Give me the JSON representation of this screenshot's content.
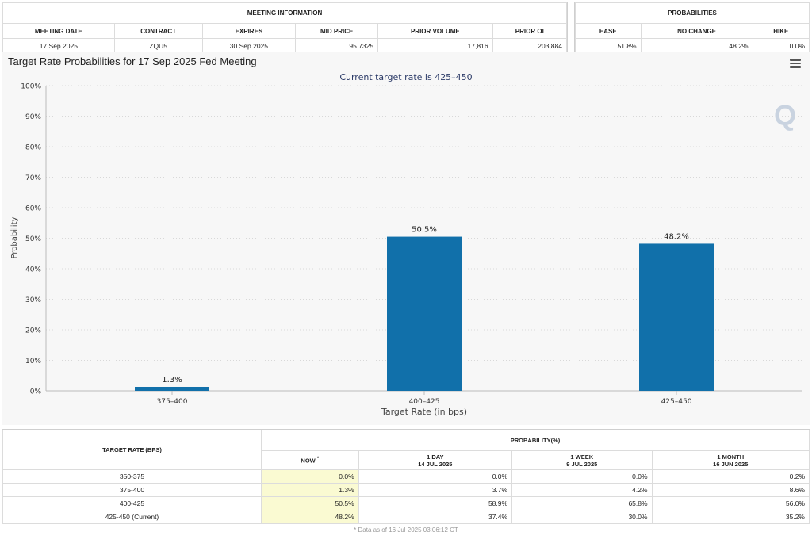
{
  "meeting_info": {
    "title": "MEETING INFORMATION",
    "headers": [
      "MEETING DATE",
      "CONTRACT",
      "EXPIRES",
      "MID PRICE",
      "PRIOR VOLUME",
      "PRIOR OI"
    ],
    "values": [
      "17 Sep 2025",
      "ZQU5",
      "30 Sep 2025",
      "95.7325",
      "17,816",
      "203,884"
    ]
  },
  "probabilities": {
    "title": "PROBABILITIES",
    "headers": [
      "EASE",
      "NO CHANGE",
      "HIKE"
    ],
    "values": [
      "51.8%",
      "48.2%",
      "0.0%"
    ]
  },
  "chart": {
    "title": "Target Rate Probabilities for 17 Sep 2025 Fed Meeting",
    "menu_icon": "hamburger-menu-icon",
    "watermark": "Q"
  },
  "chart_data": {
    "type": "bar",
    "title": "Target Rate Probabilities for 17 Sep 2025 Fed Meeting",
    "subtitle": "Current target rate is 425–450",
    "categories": [
      "375–400",
      "400–425",
      "425–450"
    ],
    "values": [
      1.3,
      50.5,
      48.2
    ],
    "data_labels": [
      "1.3%",
      "50.5%",
      "48.2%"
    ],
    "xlabel": "Target Rate (in bps)",
    "ylabel": "Probability",
    "ylim": [
      0,
      100
    ],
    "yticks": [
      0,
      10,
      20,
      30,
      40,
      50,
      60,
      70,
      80,
      90,
      100
    ],
    "ytick_suffix": "%",
    "grid": true,
    "bar_color": "#1170aa"
  },
  "target_table": {
    "rate_header": "TARGET RATE (BPS)",
    "prob_header": "PROBABILITY(%)",
    "columns": [
      {
        "label": "NOW",
        "sup": "*",
        "date": ""
      },
      {
        "label": "1 DAY",
        "date": "14 JUL 2025"
      },
      {
        "label": "1 WEEK",
        "date": "9 JUL 2025"
      },
      {
        "label": "1 MONTH",
        "date": "16 JUN 2025"
      }
    ],
    "rows": [
      {
        "rate": "350-375",
        "values": [
          "0.0%",
          "0.0%",
          "0.0%",
          "0.2%"
        ]
      },
      {
        "rate": "375-400",
        "values": [
          "1.3%",
          "3.7%",
          "4.2%",
          "8.6%"
        ]
      },
      {
        "rate": "400-425",
        "values": [
          "50.5%",
          "58.9%",
          "65.8%",
          "56.0%"
        ]
      },
      {
        "rate": "425-450 (Current)",
        "values": [
          "48.2%",
          "37.4%",
          "30.0%",
          "35.2%"
        ]
      }
    ],
    "footnote": "* Data as of 16 Jul 2025 03:06:12 CT"
  }
}
